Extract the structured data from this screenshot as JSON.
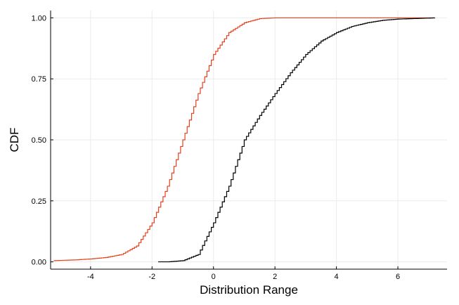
{
  "chart_data": {
    "type": "line",
    "title": "",
    "xlabel": "Distribution Range",
    "ylabel": "CDF",
    "xlim": [
      -5.3,
      7.6
    ],
    "ylim": [
      -0.03,
      1.03
    ],
    "x_ticks": [
      -4,
      -2,
      0,
      2,
      4,
      6
    ],
    "y_ticks": [
      0.0,
      0.25,
      0.5,
      0.75,
      1.0
    ],
    "x_tick_labels": [
      "-4",
      "-2",
      "0",
      "2",
      "4",
      "6"
    ],
    "y_tick_labels": [
      "0.00",
      "0.25",
      "0.50",
      "0.75",
      "1.00"
    ],
    "grid": true,
    "legend": "none",
    "colors": {
      "series_a": "#e8401c",
      "series_b": "#000000",
      "grid": "#ebebeb"
    },
    "series": [
      {
        "color": "#e8401c",
        "step": true,
        "x": [
          -5.2,
          -4.5,
          -4.0,
          -3.5,
          -3.0,
          -2.5,
          -2.0,
          -1.5,
          -1.0,
          -0.5,
          0.0,
          0.5,
          1.0,
          1.5,
          2.0,
          7.2
        ],
        "y": [
          0.005,
          0.008,
          0.012,
          0.018,
          0.03,
          0.065,
          0.16,
          0.31,
          0.5,
          0.69,
          0.85,
          0.94,
          0.98,
          0.997,
          1.0,
          1.0
        ]
      },
      {
        "color": "#000000",
        "step": true,
        "x": [
          -1.8,
          -1.5,
          -1.0,
          -0.5,
          0.0,
          0.5,
          1.0,
          1.5,
          2.0,
          2.5,
          3.0,
          3.5,
          4.0,
          4.5,
          5.0,
          5.5,
          6.0,
          6.5,
          7.2
        ],
        "y": [
          0.0,
          0.0,
          0.005,
          0.03,
          0.16,
          0.31,
          0.5,
          0.6,
          0.69,
          0.775,
          0.85,
          0.905,
          0.94,
          0.965,
          0.98,
          0.99,
          0.995,
          0.997,
          1.0
        ]
      }
    ]
  }
}
